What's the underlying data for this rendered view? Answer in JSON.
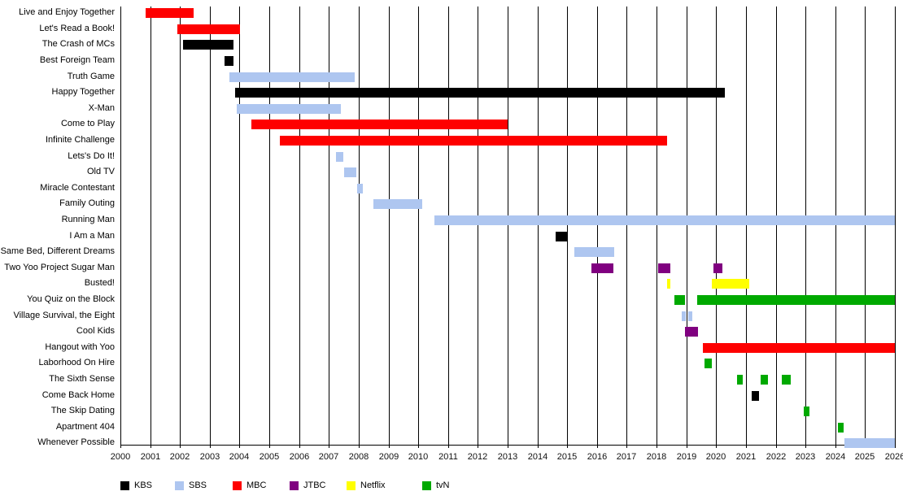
{
  "chart_data": {
    "type": "bar",
    "variant": "gantt-timeline",
    "title": "",
    "xlabel": "",
    "ylabel": "",
    "x_axis": {
      "min": 2000,
      "max": 2026,
      "tick_step": 1,
      "tick_labels": [
        "2000",
        "2001",
        "2002",
        "2003",
        "2004",
        "2005",
        "2006",
        "2007",
        "2008",
        "2009",
        "2010",
        "2011",
        "2012",
        "2013",
        "2014",
        "2015",
        "2016",
        "2017",
        "2018",
        "2019",
        "2020",
        "2021",
        "2022",
        "2023",
        "2024",
        "2025",
        "2026"
      ]
    },
    "plot": {
      "background": "#ffffff",
      "gridlines": true,
      "gridline_color": "#000000"
    },
    "legend_position": "bottom",
    "legend": [
      {
        "label": "KBS",
        "color": "#000000"
      },
      {
        "label": "SBS",
        "color": "#aec6f0"
      },
      {
        "label": "MBC",
        "color": "#fe0000"
      },
      {
        "label": "JTBC",
        "color": "#800080"
      },
      {
        "label": "Netflix",
        "color": "#ffff00"
      },
      {
        "label": "tvN",
        "color": "#00a900"
      }
    ],
    "rows": [
      {
        "label": "Live and Enjoy Together",
        "network": "MBC",
        "segments": [
          [
            2000.85,
            2002.45
          ]
        ]
      },
      {
        "label": "Let's Read a Book!",
        "network": "MBC",
        "segments": [
          [
            2001.9,
            2004.0
          ]
        ]
      },
      {
        "label": "The Crash of MCs",
        "network": "KBS",
        "segments": [
          [
            2002.1,
            2003.8
          ]
        ]
      },
      {
        "label": "Best Foreign Team",
        "network": "KBS",
        "segments": [
          [
            2003.5,
            2003.8
          ]
        ]
      },
      {
        "label": "Truth Game",
        "network": "SBS",
        "segments": [
          [
            2003.65,
            2007.85
          ]
        ]
      },
      {
        "label": "Happy Together",
        "network": "KBS",
        "segments": [
          [
            2003.85,
            2020.3
          ]
        ]
      },
      {
        "label": "X-Man",
        "network": "SBS",
        "segments": [
          [
            2003.9,
            2007.4
          ]
        ]
      },
      {
        "label": "Come to Play",
        "network": "MBC",
        "segments": [
          [
            2004.4,
            2013.0
          ]
        ]
      },
      {
        "label": "Infinite Challenge",
        "network": "MBC",
        "segments": [
          [
            2005.35,
            2018.35
          ]
        ]
      },
      {
        "label": "Lets's Do It!",
        "network": "SBS",
        "segments": [
          [
            2007.25,
            2007.5
          ]
        ]
      },
      {
        "label": "Old TV",
        "network": "SBS",
        "segments": [
          [
            2007.5,
            2007.9
          ]
        ]
      },
      {
        "label": "Miracle Contestant",
        "network": "SBS",
        "segments": [
          [
            2007.95,
            2008.15
          ]
        ]
      },
      {
        "label": "Family Outing",
        "network": "SBS",
        "segments": [
          [
            2008.5,
            2010.15
          ]
        ]
      },
      {
        "label": "Running Man",
        "network": "SBS",
        "segments": [
          [
            2010.55,
            2026
          ]
        ]
      },
      {
        "label": "I Am a Man",
        "network": "KBS",
        "segments": [
          [
            2014.6,
            2015.0
          ]
        ]
      },
      {
        "label": "Same Bed, Different Dreams",
        "network": "SBS",
        "segments": [
          [
            2015.25,
            2016.6
          ]
        ]
      },
      {
        "label": "Two Yoo Project Sugar Man",
        "network": "JTBC",
        "segments": [
          [
            2015.8,
            2016.55
          ],
          [
            2018.05,
            2018.45
          ],
          [
            2019.9,
            2020.2
          ]
        ]
      },
      {
        "label": "Busted!",
        "network": "Netflix",
        "segments": [
          [
            2018.35,
            2018.45
          ],
          [
            2019.85,
            2021.1
          ]
        ]
      },
      {
        "label": "You Quiz on the Block",
        "network": "tvN",
        "segments": [
          [
            2018.6,
            2018.95
          ],
          [
            2019.35,
            2026
          ]
        ]
      },
      {
        "label": "Village Survival, the Eight",
        "network": "SBS",
        "segments": [
          [
            2018.85,
            2019.0
          ],
          [
            2019.05,
            2019.2
          ]
        ]
      },
      {
        "label": "Cool Kids",
        "network": "JTBC",
        "segments": [
          [
            2018.95,
            2019.4
          ]
        ]
      },
      {
        "label": "Hangout with Yoo",
        "network": "MBC",
        "segments": [
          [
            2019.55,
            2026
          ]
        ]
      },
      {
        "label": "Laborhood On Hire",
        "network": "tvN",
        "segments": [
          [
            2019.6,
            2019.85
          ]
        ]
      },
      {
        "label": "The Sixth Sense",
        "network": "tvN",
        "segments": [
          [
            2020.7,
            2020.9
          ],
          [
            2021.5,
            2021.75
          ],
          [
            2022.2,
            2022.5
          ]
        ]
      },
      {
        "label": "Come Back Home",
        "network": "KBS",
        "segments": [
          [
            2021.2,
            2021.45
          ]
        ]
      },
      {
        "label": "The Skip Dating",
        "network": "tvN",
        "segments": [
          [
            2022.95,
            2023.15
          ]
        ]
      },
      {
        "label": "Apartment 404",
        "network": "tvN",
        "segments": [
          [
            2024.1,
            2024.3
          ]
        ]
      },
      {
        "label": "Whenever Possible",
        "network": "SBS",
        "segments": [
          [
            2024.3,
            2026
          ]
        ]
      }
    ]
  }
}
